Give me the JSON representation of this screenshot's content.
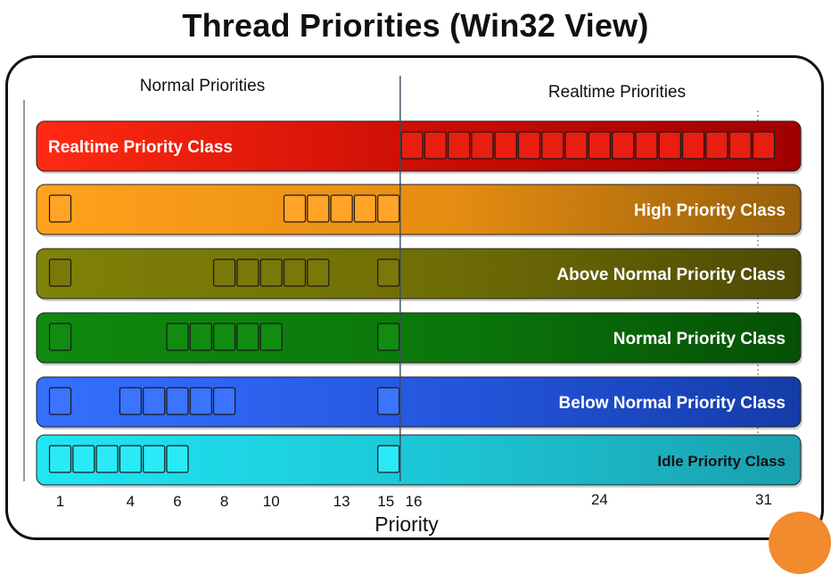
{
  "title": "Thread Priorities (Win32 View)",
  "sections": {
    "normal": "Normal Priorities",
    "realtime": "Realtime Priorities"
  },
  "axis": {
    "label": "Priority",
    "ticks": [
      1,
      4,
      6,
      8,
      10,
      13,
      15,
      16,
      24,
      31
    ],
    "split": 15.5
  },
  "classes": [
    {
      "id": "realtime",
      "label": "Realtime Priority Class",
      "align": "left",
      "colors": [
        "#ff2a12",
        "#c80c04",
        "#a00000"
      ],
      "box": "#e81e10",
      "levels": [
        16,
        17,
        18,
        19,
        20,
        21,
        22,
        23,
        24,
        25,
        26,
        27,
        28,
        29,
        30,
        31
      ]
    },
    {
      "id": "high",
      "label": "High Priority Class",
      "align": "right",
      "colors": [
        "#ffa21c",
        "#e58c12",
        "#98600a"
      ],
      "box": "#ffa426",
      "levels": [
        1,
        11,
        12,
        13,
        14,
        15
      ]
    },
    {
      "id": "above-normal",
      "label": "Above Normal Priority Class",
      "align": "right",
      "colors": [
        "#808208",
        "#6e6c06",
        "#4e4a04"
      ],
      "box": "#7a7808",
      "levels": [
        1,
        8,
        9,
        10,
        11,
        12,
        15
      ]
    },
    {
      "id": "normal",
      "label": "Normal Priority Class",
      "align": "right",
      "colors": [
        "#0f8a0f",
        "#0b760b",
        "#055005"
      ],
      "box": "#118c11",
      "levels": [
        1,
        6,
        7,
        8,
        9,
        10,
        15
      ]
    },
    {
      "id": "below-normal",
      "label": "Below Normal Priority Class",
      "align": "right",
      "colors": [
        "#3570ff",
        "#2455dc",
        "#143ca8"
      ],
      "box": "#3a74ff",
      "levels": [
        1,
        4,
        5,
        6,
        7,
        8,
        15
      ]
    },
    {
      "id": "idle",
      "label": "Idle Priority Class",
      "align": "right",
      "small": true,
      "colors": [
        "#20e6f4",
        "#1cc4d4",
        "#1aa0ae"
      ],
      "box": "#2aeaf8",
      "levels": [
        1,
        2,
        3,
        4,
        5,
        6,
        15
      ]
    }
  ]
}
